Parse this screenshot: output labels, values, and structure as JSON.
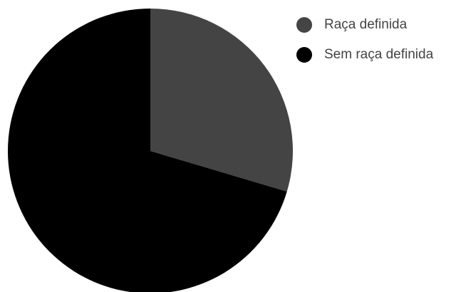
{
  "chart_data": {
    "type": "pie",
    "categories": [
      "Raça definida",
      "Sem raça definida"
    ],
    "values": [
      29.6,
      70.4
    ],
    "colors": [
      "#444444",
      "#000000"
    ],
    "start_angle": "12 o'clock",
    "direction": "clockwise",
    "legend_position": "top-right"
  }
}
